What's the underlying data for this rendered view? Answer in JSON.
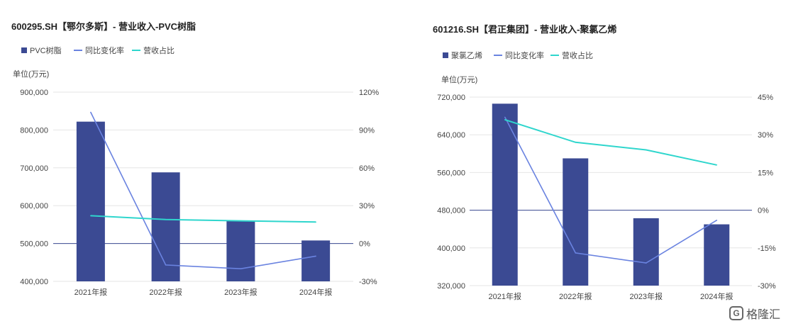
{
  "colors": {
    "bar": "#3b4a93",
    "yoy": "#6a83e0",
    "share": "#2fd6cd",
    "zero": "#3b4a93",
    "grid": "#e6e6e6",
    "text": "#444444"
  },
  "watermark": {
    "mark": "G",
    "text": "格隆汇"
  },
  "chart_data": [
    {
      "type": "bar",
      "title": "600295.SH【鄂尔多斯】- 营业收入-PVC树脂",
      "unit_label": "单位(万元)",
      "legend": [
        "PVC树脂",
        "同比变化率",
        "营收占比"
      ],
      "categories": [
        "2021年报",
        "2022年报",
        "2023年报",
        "2024年报"
      ],
      "y_ticks": [
        "400,000",
        "500,000",
        "600,000",
        "700,000",
        "800,000",
        "900,000"
      ],
      "y2_ticks": [
        "-30%",
        "0%",
        "30%",
        "60%",
        "90%",
        "120%"
      ],
      "ylim": [
        400000,
        900000
      ],
      "y2lim": [
        -30,
        120
      ],
      "series": [
        {
          "name": "PVC树脂",
          "kind": "bar",
          "axis": "left",
          "values": [
            822000,
            688000,
            560000,
            508000
          ]
        },
        {
          "name": "同比变化率",
          "kind": "line",
          "axis": "right",
          "values": [
            104,
            -17,
            -20,
            -10
          ]
        },
        {
          "name": "营收占比",
          "kind": "line",
          "axis": "right",
          "values": [
            22,
            19,
            18,
            17
          ]
        }
      ]
    },
    {
      "type": "bar",
      "title": "601216.SH【君正集团】- 营业收入-聚氯乙烯",
      "unit_label": "单位(万元)",
      "legend": [
        "聚氯乙烯",
        "同比变化率",
        "营收占比"
      ],
      "categories": [
        "2021年报",
        "2022年报",
        "2023年报",
        "2024年报"
      ],
      "y_ticks": [
        "320,000",
        "400,000",
        "480,000",
        "560,000",
        "640,000",
        "720,000"
      ],
      "y2_ticks": [
        "-30%",
        "-15%",
        "0%",
        "15%",
        "30%",
        "45%"
      ],
      "ylim": [
        320000,
        720000
      ],
      "y2lim": [
        -30,
        45
      ],
      "series": [
        {
          "name": "聚氯乙烯",
          "kind": "bar",
          "axis": "left",
          "values": [
            706000,
            590000,
            463000,
            450000
          ]
        },
        {
          "name": "同比变化率",
          "kind": "line",
          "axis": "right",
          "values": [
            37,
            -17,
            -21,
            -4
          ]
        },
        {
          "name": "营收占比",
          "kind": "line",
          "axis": "right",
          "values": [
            36,
            27,
            24,
            18
          ]
        }
      ]
    }
  ]
}
